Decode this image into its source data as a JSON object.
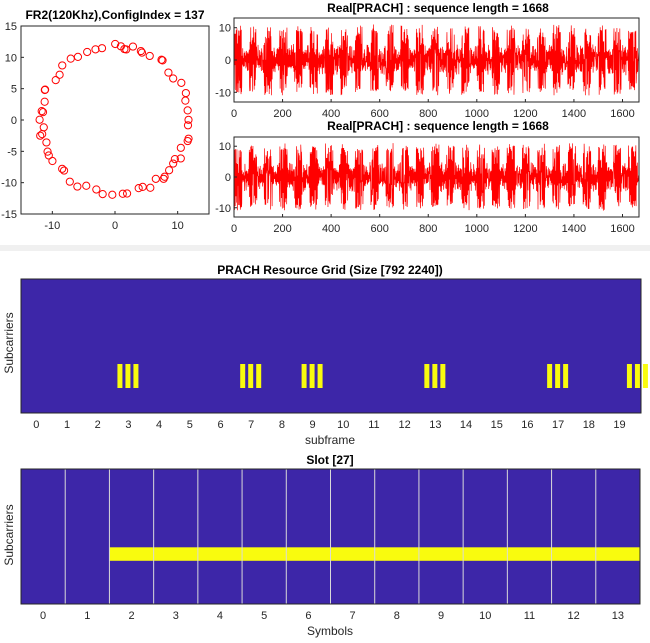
{
  "chart_data": [
    {
      "type": "scatter",
      "title": "FR2(120Khz),ConfigIndex = 137",
      "xlabel": "",
      "ylabel": "",
      "xlim": [
        -15,
        15
      ],
      "ylim": [
        -15,
        15
      ],
      "xticks": [
        "-10",
        "0",
        "10"
      ],
      "yticks": [
        "15",
        "10",
        "5",
        "0",
        "-5",
        "-10",
        "-15"
      ],
      "marker": "circle",
      "color": "#ff0000",
      "radius": 11.8,
      "n_points": 62
    },
    {
      "type": "line",
      "title": "Real[PRACH] : sequence length = 1668",
      "xlabel": "",
      "ylabel": "",
      "xlim": [
        0,
        1668
      ],
      "ylim": [
        -13,
        13
      ],
      "xticks": [
        "0",
        "200",
        "400",
        "600",
        "800",
        "1000",
        "1200",
        "1400",
        "1600"
      ],
      "yticks": [
        "10",
        "0",
        "-10"
      ],
      "color": "#ff0000",
      "block_period": 62.5,
      "amplitude": 11
    },
    {
      "type": "line",
      "title": "Real[PRACH] : sequence length = 1668",
      "xlabel": "",
      "ylabel": "",
      "xlim": [
        0,
        1668
      ],
      "ylim": [
        -13,
        13
      ],
      "xticks": [
        "0",
        "200",
        "400",
        "600",
        "800",
        "1000",
        "1200",
        "1400",
        "1600"
      ],
      "yticks": [
        "10",
        "0",
        "-10"
      ],
      "color": "#ff0000",
      "block_period": 62.5,
      "amplitude": 11
    },
    {
      "type": "heatmap",
      "title": "PRACH Resource Grid (Size [792 2240])",
      "xlabel": "subframe",
      "ylabel": "Subcarriers",
      "xlim": [
        -0.5,
        19.7
      ],
      "xticks": [
        "0",
        "1",
        "2",
        "3",
        "4",
        "5",
        "6",
        "7",
        "8",
        "9",
        "10",
        "11",
        "12",
        "13",
        "14",
        "15",
        "16",
        "17",
        "18",
        "19"
      ],
      "background_color": "#3d26a8",
      "highlight_color": "#f9fb0e",
      "active_subframes": [
        3,
        7,
        9,
        13,
        17,
        19.6
      ],
      "bars_per_group": 3
    },
    {
      "type": "heatmap",
      "title": "Slot [27]",
      "xlabel": "Symbols",
      "ylabel": "Subcarriers",
      "xlim": [
        -0.5,
        13.5
      ],
      "xticks": [
        "0",
        "1",
        "2",
        "3",
        "4",
        "5",
        "6",
        "7",
        "8",
        "9",
        "10",
        "11",
        "12",
        "13"
      ],
      "background_color": "#3d26a8",
      "highlight_color": "#f9fb0e",
      "symbol_lines_at": [
        0.5,
        1.5,
        2.5,
        3.5,
        4.5,
        5.5,
        6.5,
        7.5,
        8.5,
        9.5,
        10.5,
        11.5,
        12.5
      ],
      "highlight_from_symbol": 1.5,
      "highlight_band": [
        0.58,
        0.68
      ]
    }
  ]
}
